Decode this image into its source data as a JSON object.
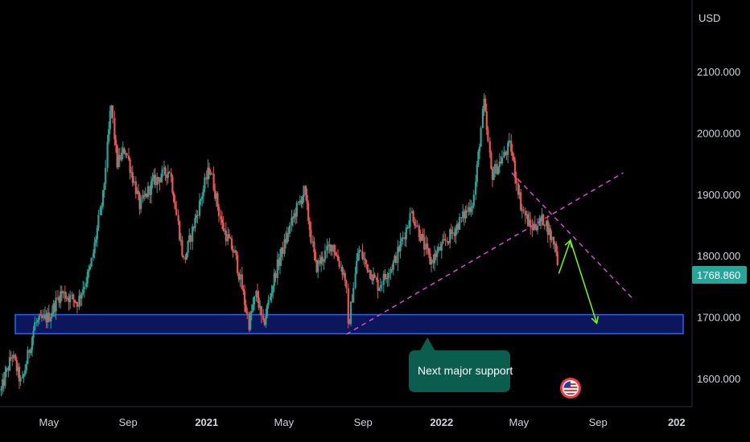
{
  "colors": {
    "background": "#000000",
    "up": "#26a69a",
    "down": "#ef5350",
    "support_zone_fill": "#0d1a6b",
    "support_zone_border": "#2962ff",
    "trendline": "#d84bd8",
    "projection": "#76ff03",
    "last_price_badge": "#26a69a",
    "callout_fill": "#0b5d4e"
  },
  "chart_data": {
    "type": "candlestick",
    "currency_label": "USD",
    "x_ticks": [
      "May",
      "Sep",
      "2021",
      "May",
      "Sep",
      "2022",
      "May",
      "Sep",
      "202"
    ],
    "x_tick_dates": [
      "2020-05-01",
      "2020-09-01",
      "2021-01-01",
      "2021-05-01",
      "2021-09-01",
      "2022-01-01",
      "2022-05-01",
      "2022-09-01",
      "2023-01-01"
    ],
    "y_ticks": [
      "2100.000",
      "2000.000",
      "1900.000",
      "1800.000",
      "1700.000",
      "1600.000"
    ],
    "y_tick_values": [
      2100,
      2000,
      1900,
      1800,
      1700,
      1600
    ],
    "ylim": [
      1555,
      2175
    ],
    "xlim": [
      "2020-02-15",
      "2023-01-25"
    ],
    "last_price": 1768.86,
    "last_price_label": "1768.860",
    "price_path": [
      [
        "2020-02-17",
        1580
      ],
      [
        "2020-03-05",
        1640
      ],
      [
        "2020-03-20",
        1590
      ],
      [
        "2020-04-10",
        1690
      ],
      [
        "2020-05-01",
        1700
      ],
      [
        "2020-05-20",
        1740
      ],
      [
        "2020-06-15",
        1725
      ],
      [
        "2020-07-05",
        1780
      ],
      [
        "2020-07-25",
        1900
      ],
      [
        "2020-08-06",
        2050
      ],
      [
        "2020-08-15",
        1950
      ],
      [
        "2020-08-28",
        1975
      ],
      [
        "2020-09-20",
        1880
      ],
      [
        "2020-10-10",
        1920
      ],
      [
        "2020-11-05",
        1940
      ],
      [
        "2020-11-27",
        1790
      ],
      [
        "2020-12-20",
        1880
      ],
      [
        "2021-01-06",
        1945
      ],
      [
        "2021-01-25",
        1850
      ],
      [
        "2021-02-15",
        1800
      ],
      [
        "2021-03-08",
        1690
      ],
      [
        "2021-03-20",
        1740
      ],
      [
        "2021-03-30",
        1685
      ],
      [
        "2021-04-20",
        1780
      ],
      [
        "2021-05-15",
        1860
      ],
      [
        "2021-06-02",
        1905
      ],
      [
        "2021-06-20",
        1780
      ],
      [
        "2021-07-15",
        1820
      ],
      [
        "2021-08-06",
        1760
      ],
      [
        "2021-08-09",
        1680
      ],
      [
        "2021-08-25",
        1810
      ],
      [
        "2021-09-25",
        1750
      ],
      [
        "2021-10-20",
        1790
      ],
      [
        "2021-11-16",
        1870
      ],
      [
        "2021-12-15",
        1790
      ],
      [
        "2022-01-20",
        1840
      ],
      [
        "2022-02-20",
        1890
      ],
      [
        "2022-03-08",
        2050
      ],
      [
        "2022-03-20",
        1930
      ],
      [
        "2022-04-18",
        1980
      ],
      [
        "2022-05-05",
        1880
      ],
      [
        "2022-05-20",
        1845
      ],
      [
        "2022-06-10",
        1860
      ],
      [
        "2022-06-20",
        1830
      ],
      [
        "2022-06-30",
        1810
      ],
      [
        "2022-07-01",
        1768.86
      ]
    ],
    "support_zone": {
      "from": "2020-02-17",
      "to": "2022-12-31",
      "low": 1673,
      "high": 1704
    },
    "trendlines": [
      {
        "from": [
          "2021-08-06",
          1672
        ],
        "to": [
          "2022-10-10",
          1935
        ]
      },
      {
        "from": [
          "2022-04-20",
          1935
        ],
        "to": [
          "2022-10-25",
          1730
        ]
      }
    ],
    "projection_path": [
      [
        "2022-07-02",
        1771
      ],
      [
        "2022-07-20",
        1825
      ],
      [
        "2022-08-30",
        1690
      ]
    ],
    "callout": {
      "text": "Next major support",
      "anchor": [
        "2021-12-10",
        1675
      ]
    },
    "flag_marker": "us-flag-icon"
  }
}
